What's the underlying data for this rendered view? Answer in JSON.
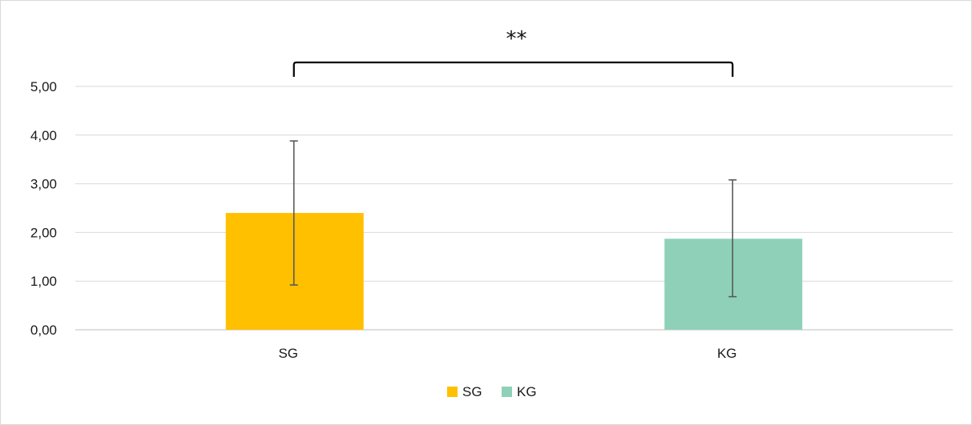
{
  "chart_data": {
    "type": "bar",
    "categories": [
      "SG",
      "KG"
    ],
    "values": [
      2.4,
      1.87
    ],
    "error_high": [
      3.88,
      3.08
    ],
    "error_low": [
      0.92,
      0.68
    ],
    "colors": [
      "#FFC000",
      "#8ED1B8"
    ],
    "ylim": [
      0,
      5
    ],
    "yticks": [
      "0,00",
      "1,00",
      "2,00",
      "3,00",
      "4,00",
      "5,00"
    ],
    "ytick_values": [
      0,
      1,
      2,
      3,
      4,
      5
    ],
    "grid": true,
    "legend": {
      "position": "bottom",
      "entries": [
        {
          "label": "SG",
          "color": "#FFC000"
        },
        {
          "label": "KG",
          "color": "#8ED1B8"
        }
      ]
    },
    "significance": {
      "label": "**",
      "between": [
        "SG",
        "KG"
      ]
    }
  }
}
